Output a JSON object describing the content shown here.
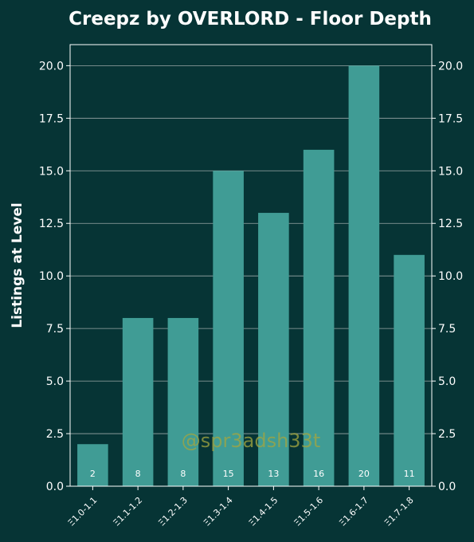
{
  "chart_data": {
    "type": "bar",
    "title": "Creepz by OVERLORD - Floor Depth",
    "xlabel": "",
    "ylabel": "Listings at Level",
    "categories": [
      "Ξ1.0-1.1",
      "Ξ1.1-1.2",
      "Ξ1.2-1.3",
      "Ξ1.3-1.4",
      "Ξ1.4-1.5",
      "Ξ1.5-1.6",
      "Ξ1.6-1.7",
      "Ξ1.7-1.8"
    ],
    "values": [
      2,
      8,
      8,
      15,
      13,
      16,
      20,
      11
    ],
    "ylim": [
      0,
      21
    ],
    "yticks": [
      "0.0",
      "2.5",
      "5.0",
      "7.5",
      "10.0",
      "12.5",
      "15.0",
      "17.5",
      "20.0"
    ],
    "grid": "horizontal",
    "right_axis": true,
    "watermark": "@spr3adsh33t",
    "colors": {
      "background": "#063435",
      "bar": "#409c95",
      "grid": "#9aa7a6",
      "text": "#ffffff",
      "watermark": "#a3a640"
    }
  }
}
